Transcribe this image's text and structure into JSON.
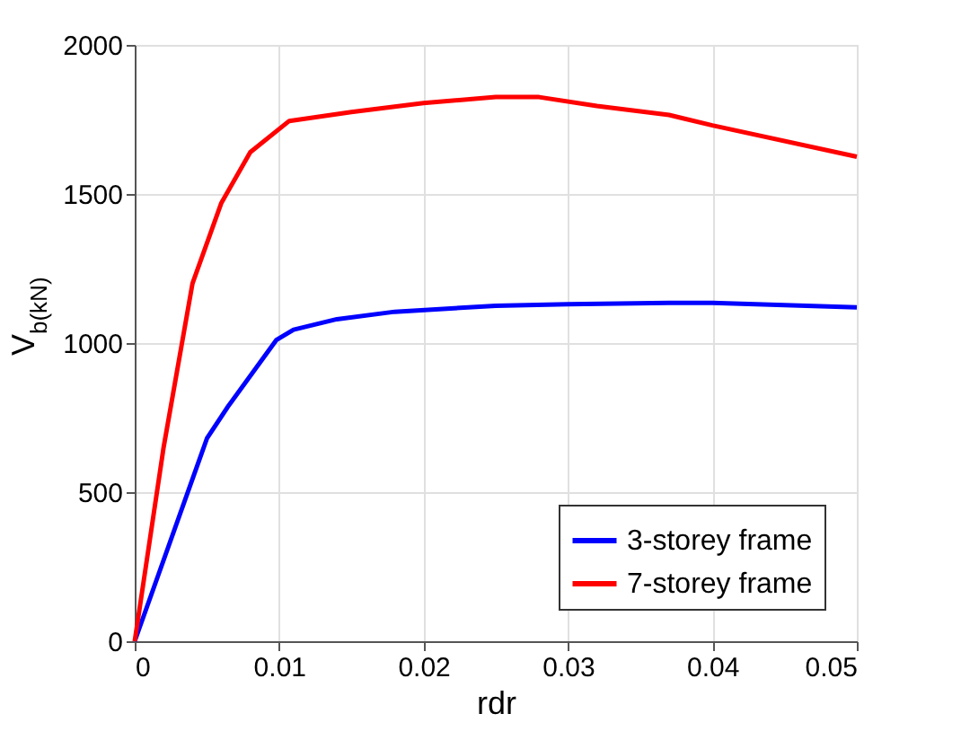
{
  "chart_data": {
    "type": "line",
    "xlabel": "rdr",
    "ylabel": "V$_{b}$(kN)",
    "xlim": [
      0,
      0.05
    ],
    "ylim": [
      0,
      2000
    ],
    "xticks": [
      0,
      0.01,
      0.02,
      0.03,
      0.04,
      0.05
    ],
    "yticks": [
      0,
      500,
      1000,
      1500,
      2000
    ],
    "grid": true,
    "legend": "bottom right",
    "marker": "none",
    "line_style": "solid",
    "series": [
      {
        "name": "3-storey frame",
        "color": "#0000ff",
        "x": [
          0,
          0.005,
          0.0065,
          0.0098,
          0.011,
          0.014,
          0.018,
          0.025,
          0.03,
          0.037,
          0.04,
          0.05
        ],
        "values": [
          0,
          680,
          790,
          1010,
          1045,
          1080,
          1105,
          1125,
          1130,
          1135,
          1135,
          1120
        ]
      },
      {
        "name": "7-storey frame",
        "color": "#ff0000",
        "x": [
          0,
          0.002,
          0.004,
          0.006,
          0.008,
          0.0107,
          0.015,
          0.02,
          0.025,
          0.028,
          0.032,
          0.037,
          0.04,
          0.05
        ],
        "values": [
          0,
          650,
          1200,
          1470,
          1640,
          1745,
          1775,
          1805,
          1825,
          1825,
          1795,
          1765,
          1730,
          1625
        ]
      }
    ]
  }
}
